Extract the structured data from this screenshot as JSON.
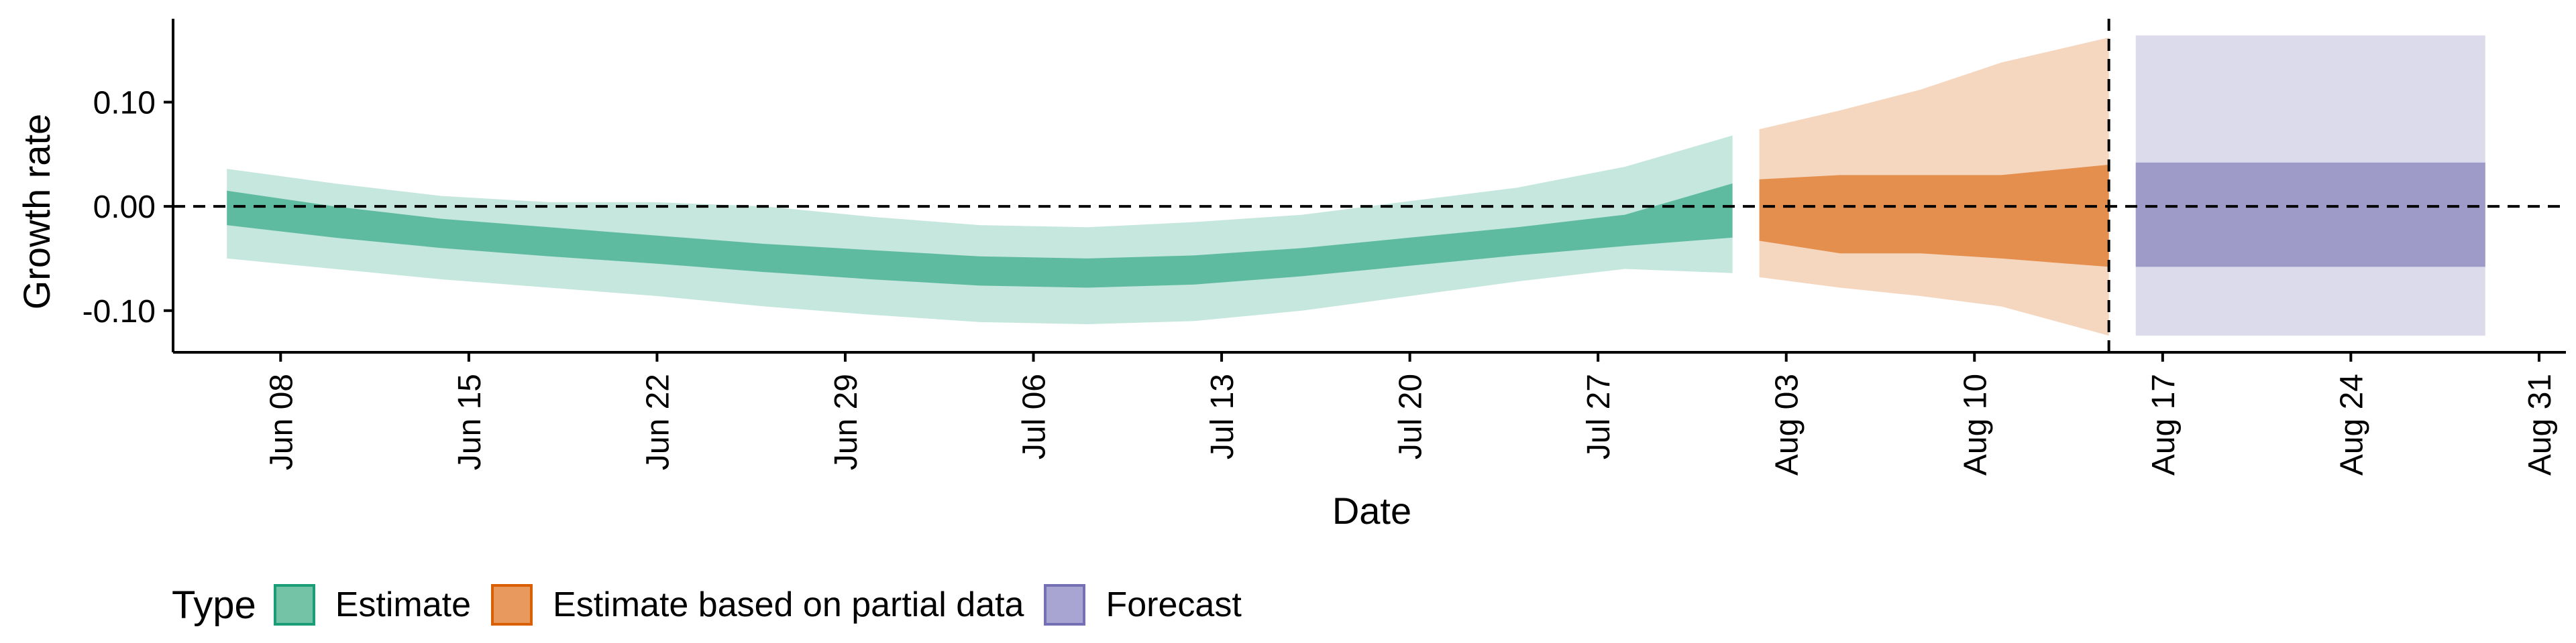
{
  "chart_data": {
    "type": "area",
    "xlabel": "Date",
    "ylabel": "Growth rate",
    "ylim": [
      -0.14,
      0.18
    ],
    "yticks": [
      -0.1,
      0.0,
      0.1
    ],
    "ytick_labels": [
      "-0.10",
      "0.00",
      "0.10"
    ],
    "x_range": [
      "2020-06-04",
      "2020-09-01"
    ],
    "xticks": [
      "2020-06-08",
      "2020-06-15",
      "2020-06-22",
      "2020-06-29",
      "2020-07-06",
      "2020-07-13",
      "2020-07-20",
      "2020-07-27",
      "2020-08-03",
      "2020-08-10",
      "2020-08-17",
      "2020-08-24",
      "2020-08-31"
    ],
    "xtick_labels": [
      "Jun 08",
      "Jun 15",
      "Jun 22",
      "Jun 29",
      "Jul 06",
      "Jul 13",
      "Jul 20",
      "Jul 27",
      "Aug 03",
      "Aug 10",
      "Aug 17",
      "Aug 24",
      "Aug 31"
    ],
    "reference_lines": {
      "horizontal_y": 0.0,
      "vertical_x": "2020-08-15"
    },
    "legend": {
      "title": "Type",
      "position": "bottom-left"
    },
    "series": [
      {
        "name": "Estimate",
        "color": "#1b9e77",
        "x": [
          "2020-06-06",
          "2020-06-10",
          "2020-06-14",
          "2020-06-18",
          "2020-06-22",
          "2020-06-26",
          "2020-06-30",
          "2020-07-04",
          "2020-07-08",
          "2020-07-12",
          "2020-07-16",
          "2020-07-20",
          "2020-07-24",
          "2020-07-28",
          "2020-08-01"
        ],
        "lower_90": [
          -0.05,
          -0.06,
          -0.07,
          -0.078,
          -0.086,
          -0.096,
          -0.104,
          -0.111,
          -0.113,
          -0.11,
          -0.1,
          -0.086,
          -0.072,
          -0.06,
          -0.064
        ],
        "lower_50": [
          -0.018,
          -0.03,
          -0.04,
          -0.048,
          -0.055,
          -0.063,
          -0.07,
          -0.076,
          -0.078,
          -0.075,
          -0.067,
          -0.057,
          -0.047,
          -0.038,
          -0.03
        ],
        "upper_50": [
          0.015,
          0.0,
          -0.012,
          -0.02,
          -0.028,
          -0.036,
          -0.042,
          -0.048,
          -0.05,
          -0.047,
          -0.04,
          -0.03,
          -0.02,
          -0.008,
          0.022
        ],
        "upper_90": [
          0.036,
          0.022,
          0.01,
          0.004,
          0.004,
          0.0,
          -0.01,
          -0.018,
          -0.02,
          -0.015,
          -0.008,
          0.005,
          0.018,
          0.038,
          0.068
        ]
      },
      {
        "name": "Estimate based on partial data",
        "color": "#d95f02",
        "x": [
          "2020-08-02",
          "2020-08-05",
          "2020-08-08",
          "2020-08-11",
          "2020-08-15"
        ],
        "lower_90": [
          -0.068,
          -0.078,
          -0.086,
          -0.096,
          -0.124
        ],
        "lower_50": [
          -0.033,
          -0.045,
          -0.045,
          -0.05,
          -0.058
        ],
        "upper_50": [
          0.026,
          0.03,
          0.03,
          0.03,
          0.04
        ],
        "upper_90": [
          0.074,
          0.092,
          0.112,
          0.138,
          0.162
        ]
      },
      {
        "name": "Forecast",
        "color": "#7570b3",
        "x": [
          "2020-08-16",
          "2020-08-29"
        ],
        "lower_90": [
          -0.124,
          -0.124
        ],
        "lower_50": [
          -0.058,
          -0.058
        ],
        "upper_50": [
          0.042,
          0.042
        ],
        "upper_90": [
          0.164,
          0.164
        ]
      }
    ]
  }
}
